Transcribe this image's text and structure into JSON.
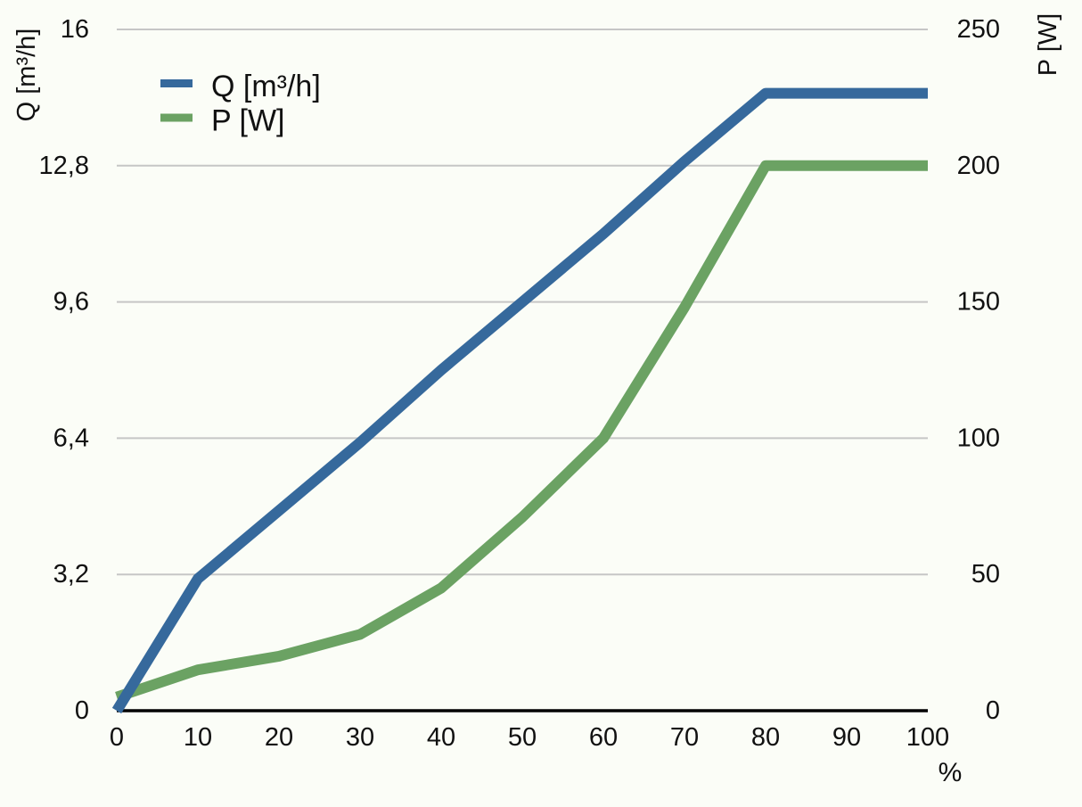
{
  "chart_data": {
    "type": "line",
    "title": "",
    "x": [
      0,
      10,
      20,
      30,
      40,
      50,
      60,
      70,
      80,
      90,
      100
    ],
    "x_axis": {
      "unit": "%",
      "ticks": [
        "0",
        "10",
        "20",
        "30",
        "40",
        "50",
        "60",
        "70",
        "80",
        "90",
        "100"
      ],
      "range": [
        0,
        100
      ]
    },
    "left_axis": {
      "title": "Q [m³/h]",
      "ticks": [
        "0",
        "3,2",
        "6,4",
        "9,6",
        "12,8",
        "16"
      ],
      "range": [
        0,
        16
      ]
    },
    "right_axis": {
      "title": "P [W]",
      "ticks": [
        "0",
        "50",
        "100",
        "150",
        "200",
        "250"
      ],
      "range": [
        0,
        250
      ]
    },
    "grid": "horizontal",
    "legend_position": "top-left",
    "series": [
      {
        "name": "Q [m³/h]",
        "axis": "left",
        "color": "#36699c",
        "values": [
          0,
          3.1,
          4.7,
          6.3,
          8.0,
          9.6,
          11.2,
          12.9,
          14.5,
          14.5,
          14.5
        ]
      },
      {
        "name": "P [W]",
        "axis": "right",
        "color": "#6ba263",
        "values": [
          5,
          15,
          20,
          28,
          45,
          71,
          100,
          148,
          200,
          200,
          200
        ]
      }
    ]
  },
  "colors": {
    "grid": "#c6c6c6",
    "axis": "#000000",
    "text": "#111111",
    "background": "#fbfdf7"
  }
}
